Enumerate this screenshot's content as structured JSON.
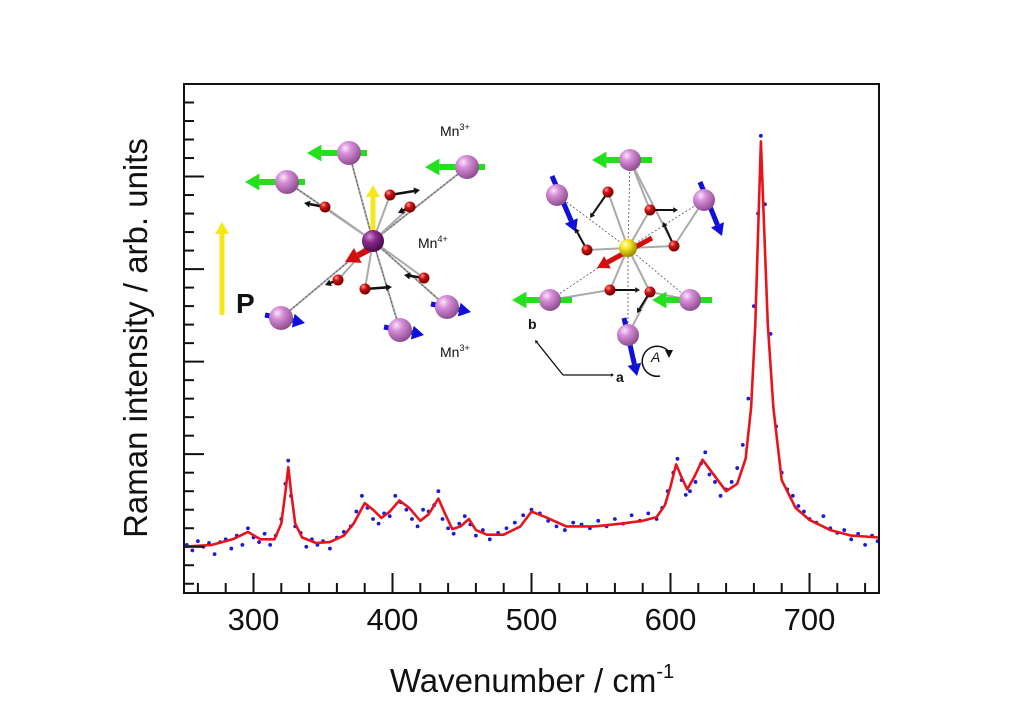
{
  "chart_data": {
    "type": "scatter",
    "title": "",
    "xlabel": "Wavenumber / cm",
    "xlabel_superscript": "-1",
    "ylabel": "Raman intensity / arb. units",
    "xlim": [
      250,
      750
    ],
    "ylim": [
      0.5,
      6.0
    ],
    "y_ticks_labeled": false,
    "x_ticks": [
      300,
      400,
      500,
      600,
      700
    ],
    "x_tick_labels": [
      "300",
      "400",
      "500",
      "600",
      "700"
    ],
    "grid": false,
    "series": [
      {
        "kind": "scatter",
        "color": "#1a1adb",
        "x": [
          252,
          256,
          260,
          264,
          268,
          272,
          276,
          280,
          284,
          288,
          292,
          296,
          300,
          304,
          308,
          312,
          316,
          320,
          323,
          325,
          327,
          330,
          334,
          338,
          342,
          346,
          350,
          355,
          360,
          365,
          370,
          374,
          378,
          382,
          386,
          390,
          394,
          398,
          402,
          406,
          410,
          414,
          418,
          422,
          426,
          430,
          433,
          436,
          440,
          444,
          448,
          452,
          456,
          460,
          465,
          470,
          476,
          482,
          488,
          494,
          500,
          506,
          512,
          518,
          524,
          530,
          536,
          542,
          548,
          554,
          560,
          566,
          572,
          578,
          584,
          590,
          594,
          598,
          602,
          605,
          608,
          611,
          614,
          618,
          622,
          625,
          628,
          632,
          636,
          640,
          644,
          648,
          652,
          656,
          660,
          663,
          665,
          668,
          672,
          676,
          680,
          684,
          688,
          692,
          696,
          700,
          705,
          710,
          715,
          720,
          725,
          730,
          735,
          740,
          745,
          749
        ],
        "y": [
          1.02,
          0.96,
          1.06,
          1.0,
          1.04,
          0.92,
          1.05,
          1.08,
          0.98,
          1.12,
          1.02,
          1.2,
          1.1,
          1.05,
          1.14,
          1.02,
          1.12,
          1.3,
          1.68,
          1.93,
          1.55,
          1.22,
          1.15,
          1.0,
          1.08,
          1.02,
          1.06,
          0.98,
          1.1,
          1.16,
          1.22,
          1.38,
          1.55,
          1.42,
          1.3,
          1.25,
          1.36,
          1.33,
          1.55,
          1.48,
          1.4,
          1.3,
          1.22,
          1.4,
          1.38,
          1.45,
          1.6,
          1.3,
          1.2,
          1.14,
          1.25,
          1.33,
          1.24,
          1.12,
          1.18,
          1.08,
          1.15,
          1.2,
          1.26,
          1.34,
          1.4,
          1.36,
          1.28,
          1.22,
          1.18,
          1.26,
          1.24,
          1.2,
          1.28,
          1.22,
          1.3,
          1.25,
          1.34,
          1.28,
          1.36,
          1.3,
          1.42,
          1.6,
          1.8,
          1.95,
          1.72,
          1.56,
          1.6,
          1.7,
          1.9,
          2.02,
          1.78,
          1.7,
          1.55,
          1.62,
          1.7,
          1.85,
          2.1,
          2.6,
          3.6,
          4.6,
          5.44,
          4.7,
          3.3,
          2.3,
          1.8,
          1.62,
          1.55,
          1.44,
          1.38,
          1.3,
          1.26,
          1.33,
          1.2,
          1.15,
          1.18,
          1.08,
          1.14,
          1.02,
          1.12,
          1.06
        ]
      },
      {
        "kind": "line",
        "color": "#e8141c",
        "x": [
          250,
          270,
          285,
          296,
          305,
          315,
          320,
          323,
          325,
          327,
          330,
          335,
          345,
          355,
          365,
          372,
          380,
          386,
          392,
          398,
          405,
          412,
          420,
          426,
          433,
          438,
          443,
          449,
          455,
          460,
          468,
          480,
          492,
          500,
          510,
          525,
          545,
          565,
          580,
          590,
          596,
          600,
          604,
          608,
          612,
          617,
          623,
          630,
          640,
          648,
          654,
          658,
          661,
          663,
          665,
          667,
          670,
          674,
          680,
          690,
          700,
          715,
          730,
          750
        ],
        "y": [
          1.0,
          1.02,
          1.08,
          1.16,
          1.08,
          1.08,
          1.25,
          1.6,
          1.86,
          1.6,
          1.25,
          1.1,
          1.04,
          1.05,
          1.12,
          1.25,
          1.47,
          1.4,
          1.31,
          1.38,
          1.5,
          1.42,
          1.28,
          1.35,
          1.52,
          1.35,
          1.19,
          1.22,
          1.3,
          1.18,
          1.13,
          1.13,
          1.22,
          1.38,
          1.32,
          1.22,
          1.22,
          1.25,
          1.28,
          1.32,
          1.45,
          1.65,
          1.89,
          1.75,
          1.62,
          1.75,
          1.94,
          1.8,
          1.6,
          1.68,
          1.95,
          2.5,
          3.4,
          4.4,
          5.38,
          4.6,
          3.4,
          2.5,
          1.72,
          1.42,
          1.29,
          1.18,
          1.12,
          1.1
        ]
      }
    ]
  },
  "insets": {
    "left": {
      "labels": {
        "mn3_top": "Mn",
        "mn3_top_sup": "3+",
        "mn4": "Mn",
        "mn4_sup": "4+",
        "mn3_bottom": "Mn",
        "mn3_bottom_sup": "3+",
        "polarization": "P"
      }
    },
    "right": {
      "labels": {
        "axis_b": "b",
        "axis_a": "a",
        "rotation": "A"
      }
    },
    "colors": {
      "mn3_sphere": "#d78ed8",
      "mn4_sphere": "#8a2a8c",
      "center_sphere": "#f2e21c",
      "oxygen": "#d01010",
      "green_arrow": "#22e01c",
      "blue_arrow": "#1010d8",
      "yellow_arrow": "#f5e81a"
    }
  }
}
